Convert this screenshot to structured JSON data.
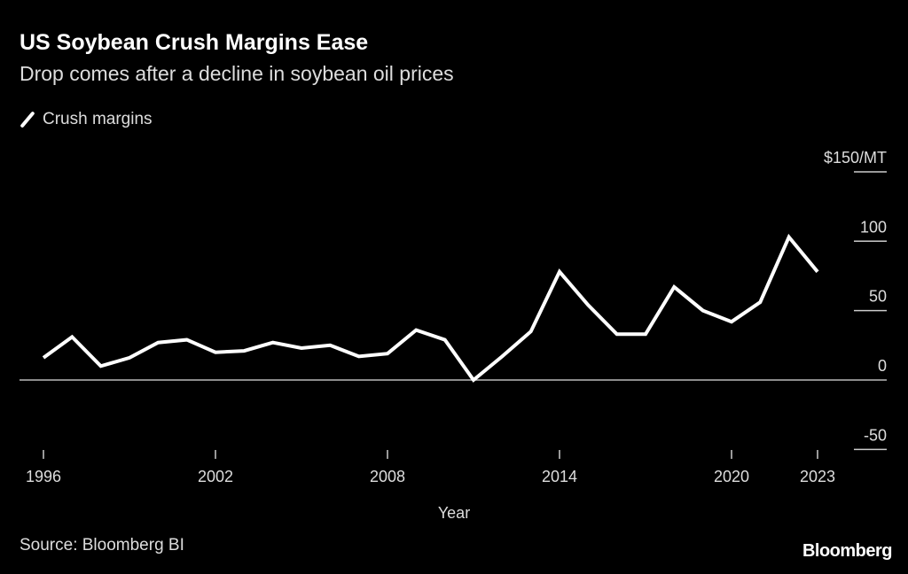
{
  "header": {
    "title": "US Soybean Crush Margins Ease",
    "subtitle": "Drop comes after a decline in soybean oil prices"
  },
  "footer": {
    "source": "Source: Bloomberg BI",
    "brand": "Bloomberg"
  },
  "chart_data": {
    "type": "line",
    "title": "US Soybean Crush Margins Ease",
    "subtitle": "Drop comes after a decline in soybean oil prices",
    "xlabel": "Year",
    "ylabel": "$/MT",
    "legend": {
      "position": "top-left",
      "entries": [
        "Crush margins"
      ]
    },
    "x": [
      1996,
      1997,
      1998,
      1999,
      2000,
      2001,
      2002,
      2003,
      2004,
      2005,
      2006,
      2007,
      2008,
      2009,
      2010,
      2011,
      2012,
      2013,
      2014,
      2015,
      2016,
      2017,
      2018,
      2019,
      2020,
      2021,
      2022,
      2023
    ],
    "series": [
      {
        "name": "Crush margins",
        "color": "#ffffff",
        "values": [
          16,
          31,
          10,
          16,
          27,
          29,
          20,
          21,
          27,
          23,
          25,
          17,
          19,
          36,
          29,
          0,
          17,
          35,
          78,
          54,
          33,
          33,
          67,
          50,
          42,
          56,
          103,
          78
        ]
      }
    ],
    "xlim": [
      1996,
      2023
    ],
    "ylim": [
      -50,
      150
    ],
    "x_ticks": [
      {
        "value": 1996,
        "label": "1996"
      },
      {
        "value": 2002,
        "label": "2002"
      },
      {
        "value": 2008,
        "label": "2008"
      },
      {
        "value": 2014,
        "label": "2014"
      },
      {
        "value": 2020,
        "label": "2020"
      },
      {
        "value": 2023,
        "label": "2023"
      }
    ],
    "y_ticks": [
      {
        "value": 150,
        "label": "$150/MT"
      },
      {
        "value": 100,
        "label": "100"
      },
      {
        "value": 50,
        "label": "50"
      },
      {
        "value": 0,
        "label": "0"
      },
      {
        "value": -50,
        "label": "-50"
      }
    ],
    "grid": false
  }
}
